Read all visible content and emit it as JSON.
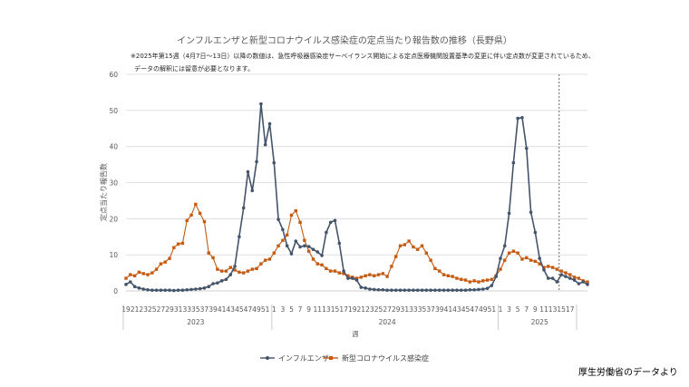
{
  "chart_data": {
    "type": "line",
    "title": "インフルエンザと新型コロナウイルス感染症の定点当たり報告数の推移（長野県）",
    "note_lines": [
      "※2025年第15週（4月7日～13日）以降の数値は、急性呼吸器感染症サーベイランス開始による定点医療機関設置基準の変更に伴い定点数が変更されているため、",
      "データの解釈には留意が必要となります。"
    ],
    "xlabel": "週",
    "ylabel": "定点当たり報告数",
    "ylim": [
      0,
      60
    ],
    "yticks": [
      0,
      10,
      20,
      30,
      40,
      50,
      60
    ],
    "grid": true,
    "legend_position": "bottom",
    "x_tick_labels": [
      "19",
      "21",
      "23",
      "25",
      "27",
      "29",
      "31",
      "33",
      "35",
      "37",
      "39",
      "41",
      "43",
      "45",
      "47",
      "49",
      "51",
      "1",
      "3",
      "5",
      "7",
      "9",
      "11",
      "13",
      "15",
      "17",
      "19",
      "21",
      "23",
      "25",
      "27",
      "29",
      "31",
      "33",
      "35",
      "37",
      "39",
      "41",
      "43",
      "45",
      "47",
      "49",
      "51",
      "1",
      "3",
      "5",
      "7",
      "9",
      "11",
      "13",
      "15",
      "17"
    ],
    "year_labels": [
      {
        "label": "2023",
        "center_index": 16
      },
      {
        "label": "2024",
        "center_index": 60
      },
      {
        "label": "2025",
        "center_index": 95
      }
    ],
    "year_dividers": [
      0,
      34,
      86,
      104
    ],
    "boundary_after_index": 99,
    "series": [
      {
        "name": "インフルエンザ",
        "color": "#44546a",
        "marker": "circle",
        "values": [
          1.8,
          2.5,
          1.2,
          0.8,
          0.5,
          0.3,
          0.2,
          0.2,
          0.2,
          0.2,
          0.2,
          0.1,
          0.2,
          0.2,
          0.3,
          0.4,
          0.5,
          0.6,
          0.8,
          1.2,
          2.0,
          2.2,
          2.8,
          3.2,
          4.5,
          6.8,
          15.0,
          23.0,
          33.0,
          27.8,
          35.8,
          51.8,
          40.5,
          46.3,
          35.5,
          19.8,
          17.0,
          12.5,
          10.3,
          13.8,
          12.2,
          12.5,
          12.3,
          11.5,
          10.8,
          9.8,
          16.2,
          19.0,
          19.5,
          13.2,
          5.5,
          3.5,
          3.5,
          3.0,
          1.0,
          0.8,
          0.5,
          0.4,
          0.3,
          0.3,
          0.2,
          0.2,
          0.2,
          0.2,
          0.2,
          0.2,
          0.2,
          0.2,
          0.2,
          0.2,
          0.2,
          0.2,
          0.2,
          0.2,
          0.2,
          0.2,
          0.2,
          0.2,
          0.2,
          0.3,
          0.3,
          0.4,
          0.5,
          0.7,
          1.5,
          4.0,
          9.0,
          12.5,
          21.5,
          35.5,
          47.8,
          48.0,
          39.5,
          21.8,
          16.2,
          9.0,
          5.8,
          3.5,
          3.5,
          2.5,
          4.5,
          4.0,
          3.5,
          3.0,
          2.0,
          2.5,
          1.8
        ]
      },
      {
        "name": "新型コロナウイルス感染症",
        "color": "#c55a11",
        "marker": "square",
        "values": [
          3.5,
          4.5,
          4.2,
          5.2,
          4.8,
          4.5,
          5.0,
          6.0,
          7.5,
          8.0,
          9.0,
          12.0,
          13.0,
          13.2,
          19.5,
          21.0,
          24.0,
          21.5,
          19.2,
          10.5,
          9.2,
          6.0,
          5.5,
          5.5,
          6.5,
          5.8,
          5.2,
          5.0,
          5.5,
          6.0,
          6.2,
          7.5,
          8.5,
          8.8,
          10.5,
          12.5,
          14.0,
          15.5,
          21.0,
          22.2,
          19.0,
          14.0,
          11.0,
          8.8,
          7.5,
          7.2,
          6.2,
          5.5,
          5.5,
          5.0,
          4.8,
          4.2,
          3.8,
          3.5,
          3.8,
          4.2,
          4.5,
          4.2,
          4.5,
          4.8,
          4.0,
          6.8,
          9.5,
          12.5,
          12.8,
          13.8,
          12.2,
          11.5,
          12.5,
          10.5,
          8.5,
          6.2,
          5.5,
          4.5,
          4.2,
          4.0,
          3.5,
          3.2,
          3.0,
          2.5,
          2.8,
          2.5,
          2.8,
          3.0,
          3.2,
          4.2,
          6.0,
          8.5,
          10.5,
          11.0,
          10.5,
          8.8,
          9.2,
          8.5,
          8.2,
          7.5,
          6.5,
          6.8,
          6.5,
          6.0,
          5.5,
          5.0,
          4.5,
          3.8,
          3.5,
          2.8,
          2.5
        ]
      }
    ]
  },
  "credit": "厚生労働省のデータより"
}
